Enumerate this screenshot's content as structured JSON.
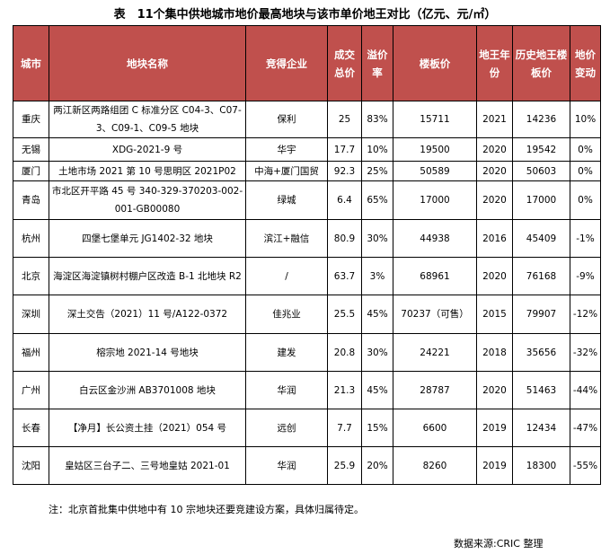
{
  "title": "表　11个集中供地城市地价最高地块与该市单价地王对比（亿元、元/㎡）",
  "header_color": "#c0504d",
  "columns": [
    "城市",
    "地块名称",
    "竞得企业",
    "成交总价",
    "溢价率",
    "楼板价",
    "地王年份",
    "历史地王楼板价",
    "地价变动"
  ],
  "rows": [
    {
      "city": "重庆",
      "plot": "两江新区两路组团 C 标准分区 C04-3、C07-3、C09-1、C09-5 地块",
      "winner": "保利",
      "total": "25",
      "premium": "83%",
      "floor_price": "15711",
      "king_year": "2021",
      "king_price": "14236",
      "change": "10%"
    },
    {
      "city": "无锡",
      "plot": "XDG-2021-9 号",
      "winner": "华宇",
      "total": "17.7",
      "premium": "10%",
      "floor_price": "19500",
      "king_year": "2020",
      "king_price": "19542",
      "change": "0%"
    },
    {
      "city": "厦门",
      "plot": "土地市场 2021 第 10 号思明区 2021P02",
      "winner": "中海+厦门国贸",
      "total": "92.3",
      "premium": "25%",
      "floor_price": "50589",
      "king_year": "2020",
      "king_price": "50603",
      "change": "0%"
    },
    {
      "city": "青岛",
      "plot": "市北区开平路 45 号 340-329-370203-002-001-GB00080",
      "winner": "绿城",
      "total": "6.4",
      "premium": "65%",
      "floor_price": "17000",
      "king_year": "2020",
      "king_price": "17000",
      "change": "0%"
    },
    {
      "city": "杭州",
      "plot": "四堡七堡单元 JG1402-32 地块",
      "winner": "滨江+融信",
      "total": "80.9",
      "premium": "30%",
      "floor_price": "44938",
      "king_year": "2016",
      "king_price": "45409",
      "change": "-1%"
    },
    {
      "city": "北京",
      "plot": "海淀区海淀镇树村棚户区改造 B-1 北地块 R2",
      "winner": "/",
      "total": "63.7",
      "premium": "3%",
      "floor_price": "68961",
      "king_year": "2020",
      "king_price": "76168",
      "change": "-9%"
    },
    {
      "city": "深圳",
      "plot": "深土交告（2021）11 号/A122-0372",
      "winner": "佳兆业",
      "total": "25.5",
      "premium": "45%",
      "floor_price": "70237（可售）",
      "king_year": "2015",
      "king_price": "79907",
      "change": "-12%"
    },
    {
      "city": "福州",
      "plot": "榕宗地 2021-14 号地块",
      "winner": "建发",
      "total": "20.8",
      "premium": "30%",
      "floor_price": "24221",
      "king_year": "2018",
      "king_price": "35656",
      "change": "-32%"
    },
    {
      "city": "广州",
      "plot": "白云区金沙洲 AB3701008 地块",
      "winner": "华润",
      "total": "21.3",
      "premium": "45%",
      "floor_price": "28787",
      "king_year": "2020",
      "king_price": "51463",
      "change": "-44%"
    },
    {
      "city": "长春",
      "plot": "【净月】长公资土挂（2021）054 号",
      "winner": "远创",
      "total": "7.7",
      "premium": "15%",
      "floor_price": "6600",
      "king_year": "2019",
      "king_price": "12434",
      "change": "-47%"
    },
    {
      "city": "沈阳",
      "plot": "皇姑区三台子二、三号地皇姑 2021-01",
      "winner": "华润",
      "total": "25.9",
      "premium": "20%",
      "floor_price": "8260",
      "king_year": "2019",
      "king_price": "18300",
      "change": "-55%"
    }
  ],
  "note": "注：北京首批集中供地中有 10 宗地块还要竞建设方案，具体归属待定。",
  "source": "数据来源:CRIC 整理"
}
